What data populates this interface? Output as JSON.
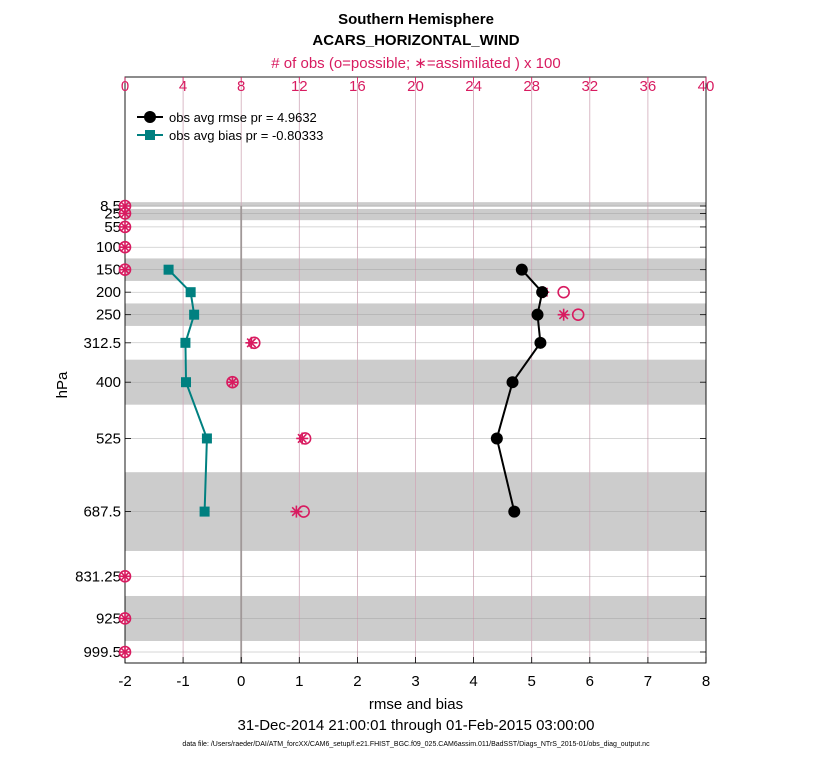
{
  "chart_data": {
    "type": "line",
    "title": "Southern Hemisphere",
    "subtitle": "ACARS_HORIZONTAL_WIND",
    "top_axis_label": "# of obs (o=possible; ∗=assimilated ) x 100",
    "xlabel": "rmse and bias",
    "ylabel": "hPa",
    "date_range": "31-Dec-2014 21:00:01 through 01-Feb-2015 03:00:00",
    "file_note": "data file: /Users/raeder/DAI/ATM_forcXX/CAM6_setup/f.e21.FHIST_BGC.f09_025.CAM6assim.011/BadSST/Diags_NTrS_2015-01/obs_diag_output.nc",
    "xlim": [
      -2,
      8
    ],
    "x_ticks": [
      "-2",
      "-1",
      "0",
      "1",
      "2",
      "3",
      "4",
      "5",
      "6",
      "7",
      "8"
    ],
    "top_lim": [
      0,
      40
    ],
    "top_ticks": [
      "0",
      "4",
      "8",
      "12",
      "16",
      "20",
      "24",
      "28",
      "32",
      "36",
      "40"
    ],
    "levels": [
      8.5,
      25,
      55,
      100,
      150,
      200,
      250,
      312.5,
      400,
      525,
      687.5,
      831.25,
      925,
      999.5
    ],
    "level_labels": [
      "8.5",
      "25",
      "55",
      "100",
      "150",
      "200",
      "250",
      "312.5",
      "400",
      "525",
      "687.5",
      "831.25",
      "925",
      "999.5"
    ],
    "bands": [
      [
        0,
        10
      ],
      [
        15,
        40
      ],
      [
        125,
        175
      ],
      [
        225,
        275
      ],
      [
        350,
        450
      ],
      [
        600,
        775
      ],
      [
        875,
        975
      ]
    ],
    "series": [
      {
        "name": "obs avg rmse",
        "legend": "obs avg rmse  pr = 4.9632",
        "color": "#000000",
        "marker": "circle",
        "points": [
          [
            150,
            4.83
          ],
          [
            200,
            5.18
          ],
          [
            250,
            5.1
          ],
          [
            312.5,
            5.15
          ],
          [
            400,
            4.67
          ],
          [
            525,
            4.4
          ],
          [
            687.5,
            4.7
          ]
        ]
      },
      {
        "name": "obs avg bias",
        "legend": "obs avg bias  pr = -0.80333",
        "color": "#008080",
        "marker": "square",
        "points": [
          [
            150,
            -1.25
          ],
          [
            200,
            -0.87
          ],
          [
            250,
            -0.81
          ],
          [
            312.5,
            -0.96
          ],
          [
            400,
            -0.95
          ],
          [
            525,
            -0.59
          ],
          [
            687.5,
            -0.63
          ]
        ]
      }
    ],
    "obs_counts": {
      "color": "#d81b60",
      "levels": [
        8.5,
        25,
        55,
        100,
        150,
        200,
        250,
        312.5,
        400,
        525,
        687.5,
        831.25,
        925,
        999.5
      ],
      "possible": [
        0,
        0,
        0,
        0,
        0,
        30.2,
        31.2,
        8.9,
        7.4,
        12.4,
        12.3,
        0,
        0,
        0
      ],
      "assimilated": [
        0,
        0,
        0,
        0,
        0,
        28.8,
        30.2,
        8.7,
        7.4,
        12.2,
        11.8,
        0,
        0,
        0
      ]
    }
  }
}
